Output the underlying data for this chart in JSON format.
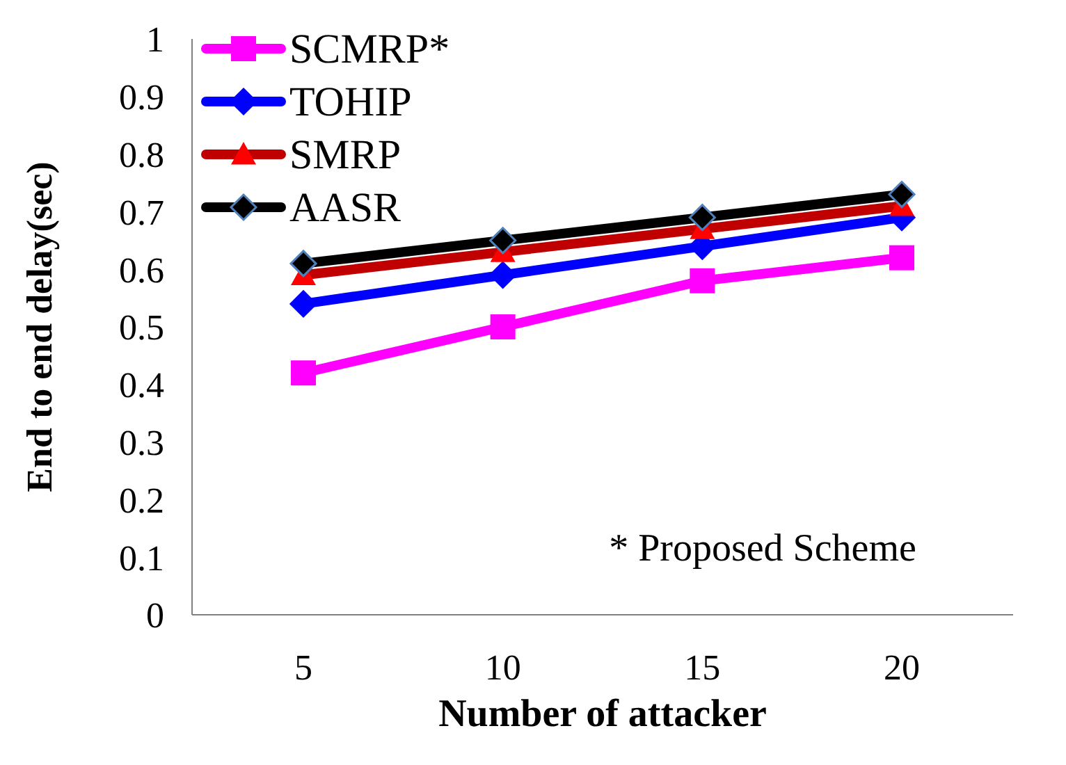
{
  "chart_data": {
    "type": "line",
    "xlabel": "Number  of attacker",
    "ylabel": "End to end delay(sec)",
    "categories": [
      "5",
      "10",
      "15",
      "20"
    ],
    "series": [
      {
        "name": "SCMRP*",
        "color": "#ff00ff",
        "marker": "square",
        "values": [
          0.42,
          0.5,
          0.58,
          0.62
        ]
      },
      {
        "name": "TOHIP",
        "color": "#0000ff",
        "marker": "diamond",
        "values": [
          0.54,
          0.59,
          0.64,
          0.69
        ]
      },
      {
        "name": "SMRP",
        "color": "#c00000",
        "marker": "triangle",
        "values": [
          0.59,
          0.63,
          0.67,
          0.71
        ]
      },
      {
        "name": "AASR",
        "color": "#000000",
        "marker": "diamond",
        "values": [
          0.61,
          0.65,
          0.69,
          0.73
        ]
      }
    ],
    "ylim": [
      0,
      1
    ],
    "yticks": [
      0,
      0.1,
      0.2,
      0.3,
      0.4,
      0.5,
      0.6,
      0.7,
      0.8,
      0.9,
      1
    ],
    "grid": false,
    "legend": "top left",
    "annotations": [
      "* Proposed Scheme"
    ]
  }
}
